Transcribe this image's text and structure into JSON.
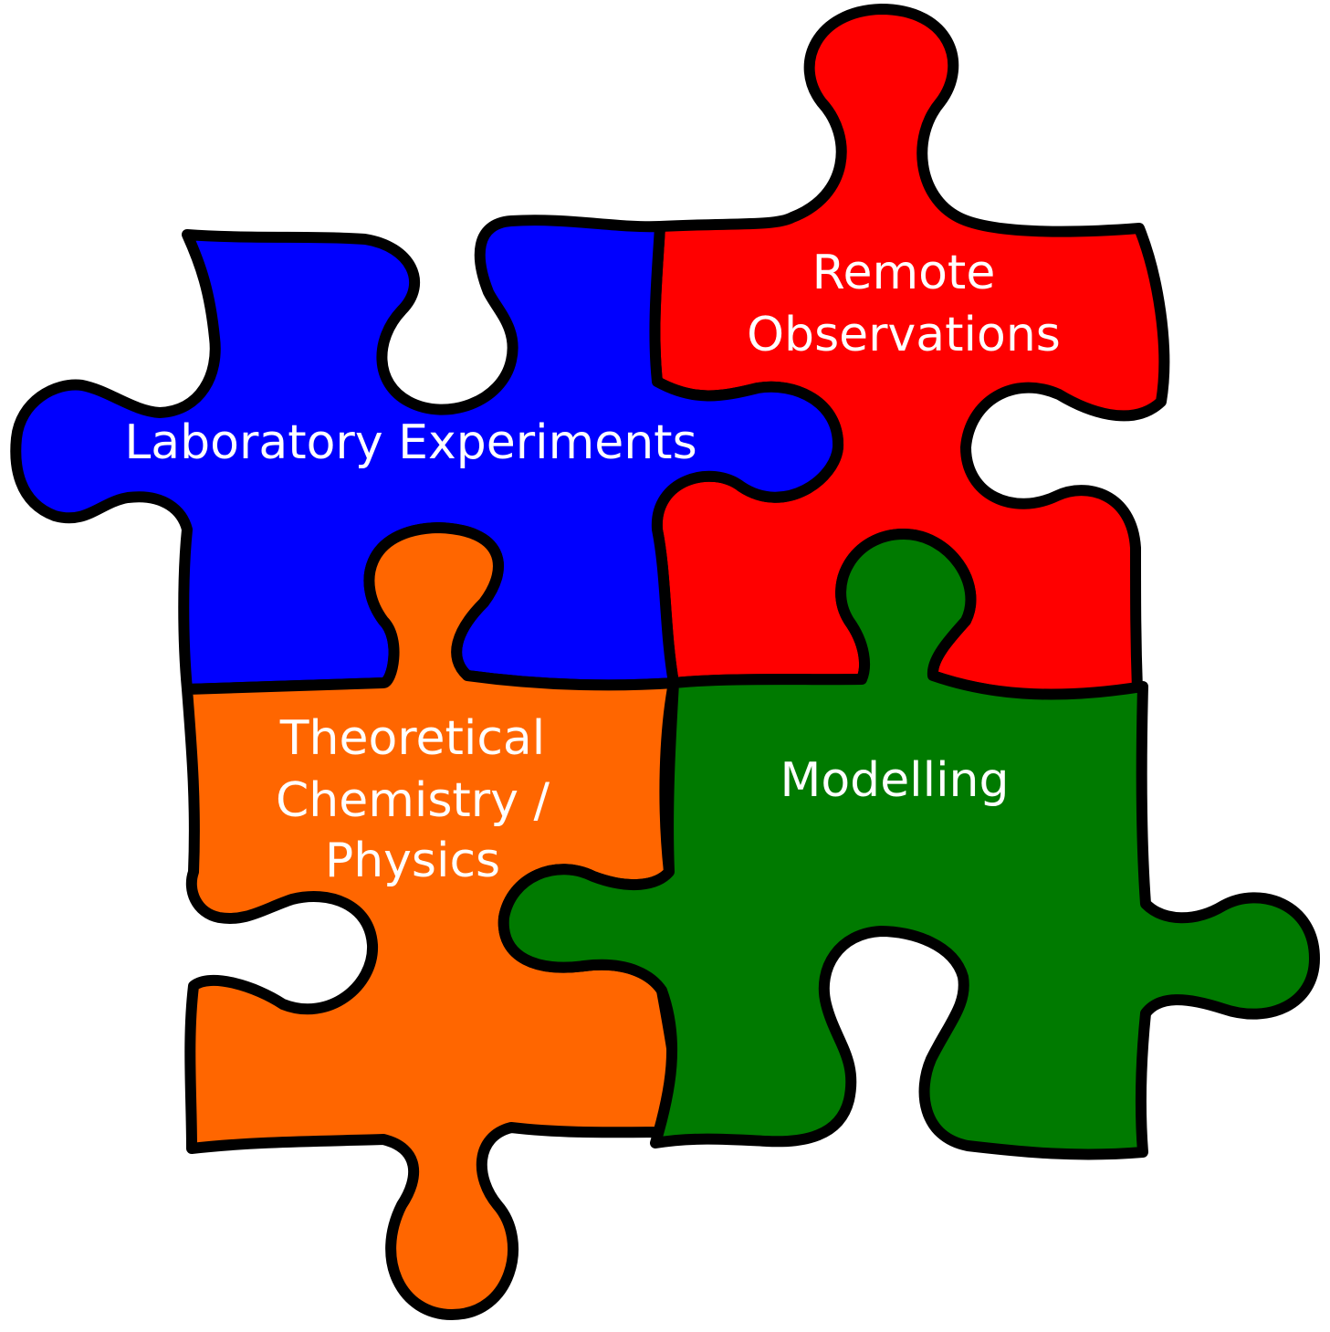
{
  "pieces": {
    "laboratory": {
      "label_lines": [
        "Laboratory Experiments"
      ],
      "color": "#0000ff"
    },
    "remote": {
      "label_lines": [
        "Remote",
        "Observations"
      ],
      "color": "#ff0000"
    },
    "theoretical": {
      "label_lines": [
        "Theoretical",
        "Chemistry /",
        "Physics"
      ],
      "color": "#ff6600"
    },
    "modelling": {
      "label_lines": [
        "Modelling"
      ],
      "color": "#007a00"
    }
  },
  "colors": {
    "outline": "#000000",
    "label_text": "#ffffff",
    "background": "#ffffff"
  }
}
